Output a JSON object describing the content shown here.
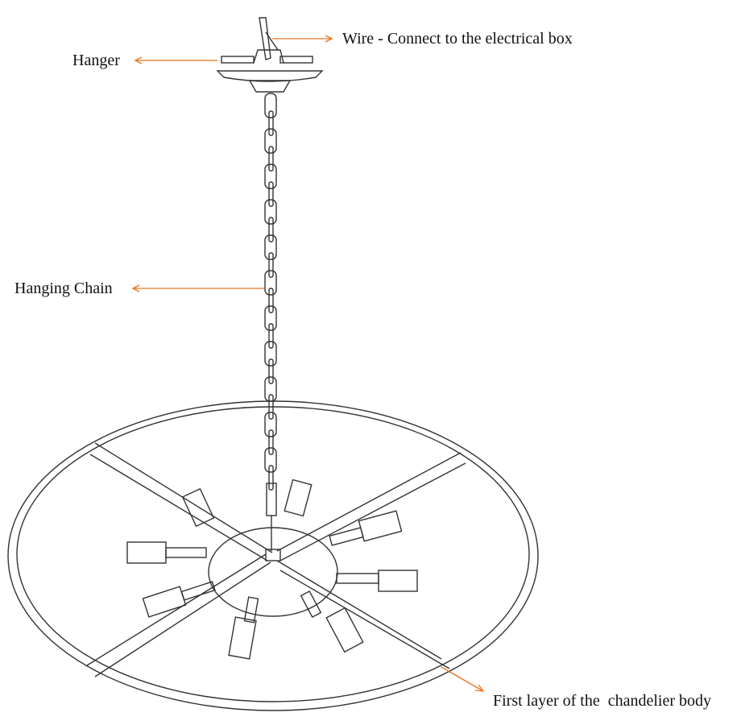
{
  "callouts": [
    {
      "label": "Wire - Connect to the electrical box"
    },
    {
      "label": "Hanger"
    },
    {
      "label": "Hanging Chain"
    },
    {
      "label": "First layer of the  chandelier body"
    }
  ]
}
